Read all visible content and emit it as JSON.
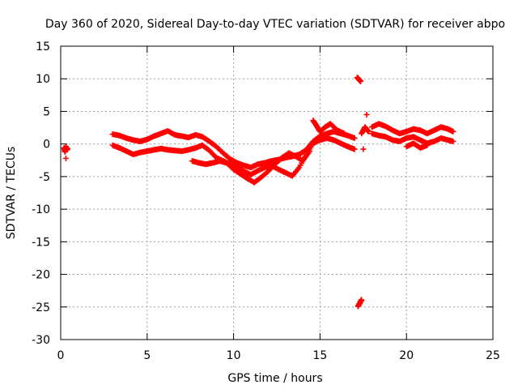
{
  "chart_data": {
    "type": "scatter",
    "title": "Day 360 of 2020, Sidereal Day-to-day VTEC variation (SDTVAR) for receiver abpo",
    "xlabel": "GPS time / hours",
    "ylabel": "SDTVAR / TECUs",
    "xlim": [
      0,
      25
    ],
    "ylim": [
      -30,
      15
    ],
    "xticks": [
      0,
      5,
      10,
      15,
      20,
      25
    ],
    "yticks": [
      -30,
      -25,
      -20,
      -15,
      -10,
      -5,
      0,
      5,
      10,
      15
    ],
    "grid": true,
    "marker": "plus",
    "color": "#ff0000",
    "segments": [
      {
        "x": [
          0.2,
          0.25,
          0.3,
          0.35,
          0.4
        ],
        "y": [
          -0.6,
          -1.2,
          -0.4,
          -0.9,
          -0.7
        ]
      },
      {
        "x": [
          0.3
        ],
        "y": [
          -2.2
        ]
      },
      {
        "x": [
          3.0,
          3.4,
          3.8,
          4.2,
          4.6,
          5.0,
          5.4,
          5.8,
          6.2,
          6.6,
          7.0,
          7.4,
          7.8,
          8.2,
          8.6,
          9.0,
          9.4,
          9.8,
          10.2,
          10.6,
          11.0,
          11.4,
          11.8,
          12.2,
          12.6,
          13.0,
          13.4,
          13.8,
          14.2,
          14.6,
          15.0,
          15.4,
          15.8,
          16.2,
          16.6,
          17.0
        ],
        "y": [
          1.5,
          1.3,
          0.9,
          0.6,
          0.4,
          0.7,
          1.2,
          1.6,
          2.0,
          1.4,
          1.2,
          1.0,
          1.4,
          1.1,
          0.4,
          -0.4,
          -1.4,
          -2.3,
          -2.9,
          -3.3,
          -3.6,
          -3.1,
          -2.9,
          -2.6,
          -2.4,
          -2.1,
          -1.9,
          -1.6,
          -0.9,
          0.4,
          1.2,
          1.6,
          1.9,
          1.6,
          1.3,
          0.9
        ]
      },
      {
        "x": [
          3.0,
          3.4,
          3.8,
          4.2,
          4.6,
          5.0,
          5.4,
          5.8,
          6.2,
          6.6,
          7.0,
          7.4,
          7.8,
          8.2,
          8.6,
          9.0,
          9.4,
          9.8,
          10.2,
          10.6,
          11.0,
          11.4,
          11.8,
          12.2,
          12.6,
          13.0,
          13.4,
          13.8,
          14.2,
          14.6,
          15.0,
          15.4,
          15.8,
          16.2,
          16.6,
          17.0
        ],
        "y": [
          -0.2,
          -0.6,
          -1.1,
          -1.6,
          -1.3,
          -1.1,
          -0.9,
          -0.7,
          -0.9,
          -1.0,
          -1.1,
          -0.9,
          -0.6,
          -0.2,
          -1.0,
          -2.1,
          -2.6,
          -3.1,
          -3.6,
          -4.2,
          -4.7,
          -4.1,
          -3.6,
          -3.3,
          -3.9,
          -4.4,
          -4.9,
          -3.6,
          -1.6,
          0.1,
          0.6,
          0.9,
          0.6,
          0.1,
          -0.4,
          -0.8
        ]
      },
      {
        "x": [
          7.6,
          8.0,
          8.4,
          8.8,
          9.2,
          9.6,
          10.0,
          10.4,
          10.8,
          11.2,
          11.6,
          12.0,
          12.4,
          12.8,
          13.2,
          13.6,
          14.0,
          14.4
        ],
        "y": [
          -2.6,
          -2.9,
          -3.1,
          -2.9,
          -2.6,
          -2.9,
          -3.9,
          -4.6,
          -5.3,
          -5.9,
          -5.1,
          -4.2,
          -3.1,
          -2.1,
          -1.4,
          -1.9,
          -2.6,
          -1.1
        ]
      },
      {
        "x": [
          14.6,
          14.8,
          15.0,
          15.3,
          15.6,
          16.0,
          16.4
        ],
        "y": [
          3.6,
          2.8,
          1.9,
          2.6,
          3.1,
          2.1,
          1.6
        ]
      },
      {
        "x": [
          17.15,
          17.25,
          17.35
        ],
        "y": [
          10.2,
          9.9,
          9.6
        ]
      },
      {
        "x": [
          17.2,
          17.3,
          17.4
        ],
        "y": [
          -24.9,
          -24.4,
          -23.9
        ]
      },
      {
        "x": [
          17.4,
          17.6,
          17.8
        ],
        "y": [
          1.6,
          2.6,
          1.9
        ]
      },
      {
        "x": [
          17.7
        ],
        "y": [
          4.5
        ]
      },
      {
        "x": [
          17.5
        ],
        "y": [
          -0.8
        ]
      },
      {
        "x": [
          18.0,
          18.4,
          18.8,
          19.2,
          19.6,
          20.0,
          20.4,
          20.8,
          21.2,
          21.6,
          22.0,
          22.4,
          22.7
        ],
        "y": [
          2.6,
          3.1,
          2.7,
          2.1,
          1.6,
          1.9,
          2.3,
          2.1,
          1.6,
          2.1,
          2.6,
          2.3,
          1.9
        ]
      },
      {
        "x": [
          18.0,
          18.4,
          18.8,
          19.2,
          19.6,
          20.0,
          20.4,
          20.8,
          21.2,
          21.6,
          22.0,
          22.4,
          22.7
        ],
        "y": [
          1.6,
          1.3,
          1.1,
          0.6,
          0.4,
          0.9,
          1.1,
          0.6,
          0.1,
          0.4,
          0.9,
          0.6,
          0.4
        ]
      },
      {
        "x": [
          20.0,
          20.4,
          20.8,
          21.2
        ],
        "y": [
          -0.4,
          0.1,
          -0.6,
          -0.2
        ]
      }
    ]
  }
}
